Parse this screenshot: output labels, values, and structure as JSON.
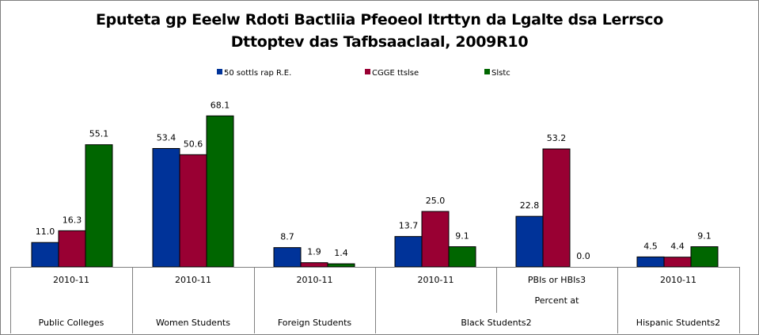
{
  "chart_data": {
    "type": "bar",
    "title": "Eputeta gp Eeelw Rdoti Bactliia Pfeoeol Itrttyn da Lgalte dsa Lerrsco",
    "subtitle": "Dttoptev das Tafbsaaclaal, 2009R10",
    "groups": [
      {
        "period": "2010-11",
        "category": "Public Colleges",
        "values": [
          11.0,
          16.3,
          55.1
        ],
        "labels": [
          "11.0",
          "16.3",
          "55.1"
        ]
      },
      {
        "period": "2010-11",
        "category": "Women Students",
        "values": [
          53.4,
          50.6,
          68.1
        ],
        "labels": [
          "53.4",
          "50.6",
          "68.1"
        ]
      },
      {
        "period": "2010-11",
        "category": "Foreign Students",
        "values": [
          8.7,
          1.9,
          1.4
        ],
        "labels": [
          "8.7",
          "1.9",
          "1.4"
        ]
      },
      {
        "period": "2010-11",
        "category": "Black Students2",
        "values": [
          13.7,
          25.0,
          9.1
        ],
        "labels": [
          "13.7",
          "25.0",
          "9.1"
        ]
      },
      {
        "period": "PBIs or HBIs3",
        "category": "Percent at",
        "values": [
          22.8,
          53.2,
          0.0
        ],
        "labels": [
          "22.8",
          "53.2",
          "0.0"
        ]
      },
      {
        "period": "2010-11",
        "category": "Hispanic Students2",
        "values": [
          4.5,
          4.4,
          9.1
        ],
        "labels": [
          "4.5",
          "4.4",
          "9.1"
        ]
      }
    ],
    "series": [
      {
        "name": "50 sottls rap R.E.",
        "color": "#003399"
      },
      {
        "name": "CGGE ttslse",
        "color": "#990033"
      },
      {
        "name": "Slstc",
        "color": "#006600"
      }
    ],
    "merged_category_label": "Black Students2",
    "ylim": [
      0,
      70
    ],
    "grid": false,
    "legend_position": "top"
  }
}
